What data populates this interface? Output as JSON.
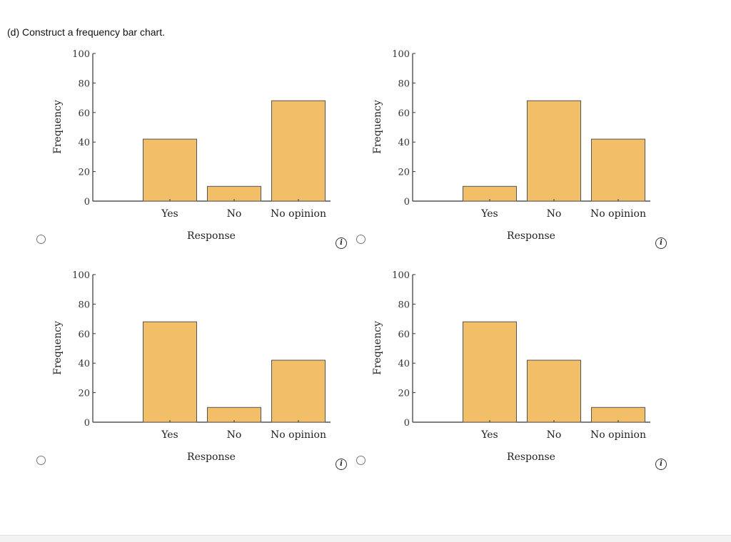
{
  "question": "(d) Construct a frequency bar chart.",
  "colors": {
    "bar_fill": "#f2be67",
    "bar_stroke": "#555555",
    "axis": "#333333"
  },
  "icons": {
    "info": "info-icon",
    "radio": "radio-button"
  },
  "info_glyph": "i",
  "chart_data": [
    {
      "type": "bar",
      "categories": [
        "Yes",
        "No",
        "No opinion"
      ],
      "values": [
        42,
        10,
        68
      ],
      "xlabel": "Response",
      "ylabel": "Frequency",
      "ylim": [
        0,
        100
      ],
      "yticks": [
        0,
        20,
        40,
        60,
        80,
        100
      ],
      "grid": false
    },
    {
      "type": "bar",
      "categories": [
        "Yes",
        "No",
        "No opinion"
      ],
      "values": [
        10,
        68,
        42
      ],
      "xlabel": "Response",
      "ylabel": "Frequency",
      "ylim": [
        0,
        100
      ],
      "yticks": [
        0,
        20,
        40,
        60,
        80,
        100
      ],
      "grid": false
    },
    {
      "type": "bar",
      "categories": [
        "Yes",
        "No",
        "No opinion"
      ],
      "values": [
        68,
        10,
        42
      ],
      "xlabel": "Response",
      "ylabel": "Frequency",
      "ylim": [
        0,
        100
      ],
      "yticks": [
        0,
        20,
        40,
        60,
        80,
        100
      ],
      "grid": false
    },
    {
      "type": "bar",
      "categories": [
        "Yes",
        "No",
        "No opinion"
      ],
      "values": [
        68,
        42,
        10
      ],
      "xlabel": "Response",
      "ylabel": "Frequency",
      "ylim": [
        0,
        100
      ],
      "yticks": [
        0,
        20,
        40,
        60,
        80,
        100
      ],
      "grid": false
    }
  ]
}
